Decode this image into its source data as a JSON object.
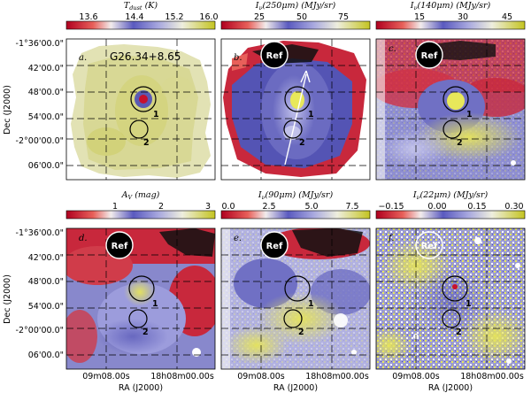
{
  "figure": {
    "source_name": "G26.34+8.65",
    "ref_label": "Ref",
    "ra_label": "RA (J2000)",
    "dec_label": "Dec (J2000)",
    "ra_ticks": [
      "09m08.00s",
      "18h08m00.00s"
    ],
    "dec_ticks": [
      "-1°36'00.0\"",
      "42'00.0\"",
      "48'00.0\"",
      "54'00.0\"",
      "-2°00'00.0\"",
      "06'00.0\""
    ],
    "clump_labels": [
      "1",
      "2"
    ]
  },
  "panels": [
    {
      "id": "a",
      "letter": "a.",
      "title": "T_dust (K)",
      "ticks": [
        "13.6",
        "14.4",
        "15.2",
        "16.0"
      ],
      "show_source": true,
      "show_ref": false,
      "show_arrow": false
    },
    {
      "id": "b",
      "letter": "b.",
      "title": "I_ν(250μm) (MJy/sr)",
      "ticks": [
        "25",
        "50",
        "75"
      ],
      "show_source": false,
      "show_ref": true,
      "show_arrow": true
    },
    {
      "id": "c",
      "letter": "c.",
      "title": "I_ν(140μm) (MJy/sr)",
      "ticks": [
        "15",
        "30",
        "45"
      ],
      "show_source": false,
      "show_ref": true,
      "show_arrow": false
    },
    {
      "id": "d",
      "letter": "d.",
      "title": "A_V (mag)",
      "ticks": [
        "1",
        "2",
        "3"
      ],
      "show_source": false,
      "show_ref": true,
      "show_arrow": false
    },
    {
      "id": "e",
      "letter": "e.",
      "title": "I_ν(90μm) (MJy/sr)",
      "ticks": [
        "0.0",
        "2.5",
        "5.0",
        "7.5"
      ],
      "show_source": false,
      "show_ref": true,
      "show_arrow": false
    },
    {
      "id": "f",
      "letter": "f.",
      "title": "I_ν(22μm) (MJy/sr)",
      "ticks": [
        "−0.15",
        "0.00",
        "0.15",
        "0.30"
      ],
      "show_source": false,
      "show_ref": true,
      "show_arrow": false
    }
  ],
  "colors": {
    "cmap": [
      "#c8102e",
      "#e8564f",
      "#f7f7f7",
      "#6a6ac8",
      "#9e9edc",
      "#f4f4f0",
      "#c8c832"
    ],
    "grid": "#000000"
  }
}
